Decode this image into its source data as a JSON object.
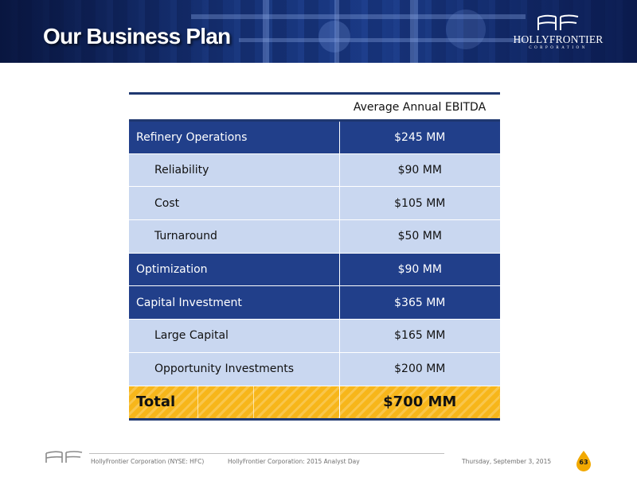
{
  "header": {
    "title": "Our Business Plan",
    "logo": {
      "name": "HOLLYFRONTIER",
      "sub": "CORPORATION",
      "icon": "hollyfrontier-logo-icon"
    }
  },
  "table": {
    "column_header": "Average Annual EBITDA",
    "rows": [
      {
        "label": "Refinery Operations",
        "value": "$245 MM",
        "level": "main"
      },
      {
        "label": "Reliability",
        "value": "$90 MM",
        "level": "sub"
      },
      {
        "label": "Cost",
        "value": "$105 MM",
        "level": "sub"
      },
      {
        "label": "Turnaround",
        "value": "$50 MM",
        "level": "sub"
      },
      {
        "label": "Optimization",
        "value": "$90 MM",
        "level": "main"
      },
      {
        "label": "Capital Investment",
        "value": "$365 MM",
        "level": "main"
      },
      {
        "label": "Large Capital",
        "value": "$165 MM",
        "level": "sub"
      },
      {
        "label": "Opportunity Investments",
        "value": "$200 MM",
        "level": "sub"
      }
    ],
    "total": {
      "label": "Total",
      "value": "$700 MM"
    }
  },
  "footer": {
    "company": "HollyFrontier Corporation (NYSE: HFC)",
    "event": "HollyFrontier Corporation: 2015 Analyst Day",
    "date": "Thursday, September 3, 2015",
    "page": "63"
  },
  "colors": {
    "navy": "#213f8a",
    "light_blue": "#c9d7f0",
    "gold": "#f7b61a"
  }
}
